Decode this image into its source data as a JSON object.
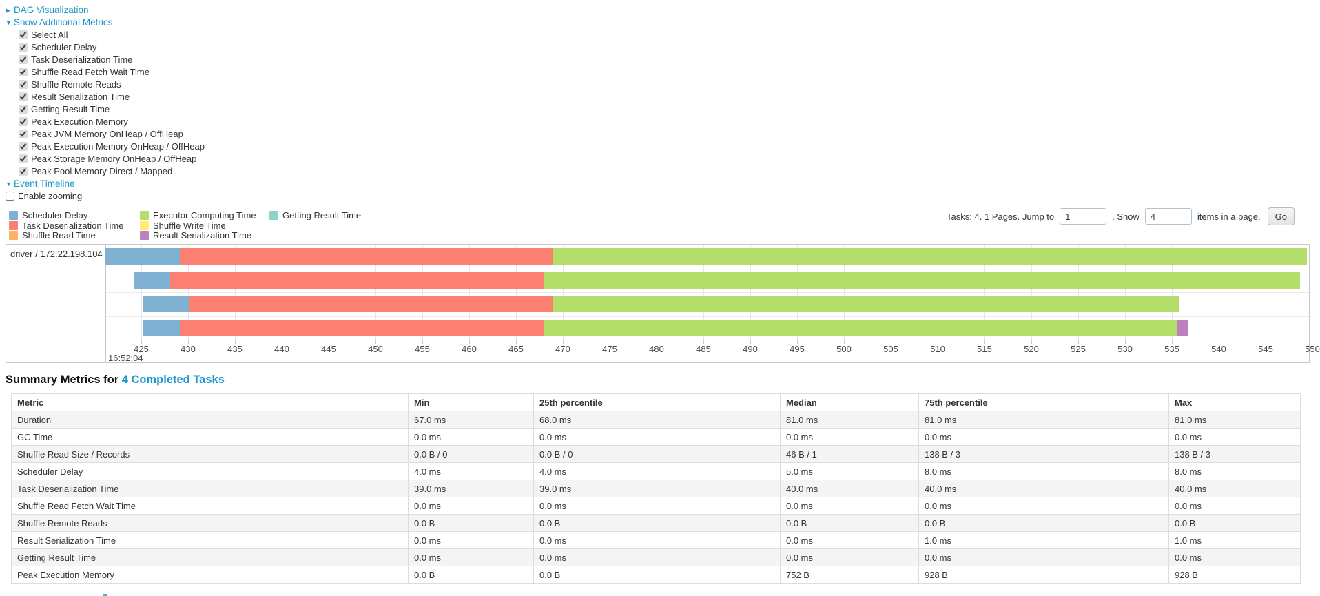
{
  "colors": {
    "link": "#1a96cb",
    "scheduler-delay": "#80B1D3",
    "task-deserialization": "#FB8072",
    "shuffle-read": "#FDB462",
    "executor-computing": "#B3DE69",
    "shuffle-write": "#FFED6F",
    "result-serialization": "#BC80BD",
    "getting-result": "#8DD3C7"
  },
  "sections": {
    "dag": {
      "label": "DAG Visualization",
      "collapsed": true
    },
    "metrics": {
      "label": "Show Additional Metrics",
      "collapsed": false
    },
    "timeline": {
      "label": "Event Timeline",
      "collapsed": false
    }
  },
  "metric_checkboxes": [
    {
      "label": "Select All",
      "checked": true
    },
    {
      "label": "Scheduler Delay",
      "checked": true
    },
    {
      "label": "Task Deserialization Time",
      "checked": true
    },
    {
      "label": "Shuffle Read Fetch Wait Time",
      "checked": true
    },
    {
      "label": "Shuffle Remote Reads",
      "checked": true
    },
    {
      "label": "Result Serialization Time",
      "checked": true
    },
    {
      "label": "Getting Result Time",
      "checked": true
    },
    {
      "label": "Peak Execution Memory",
      "checked": true
    },
    {
      "label": "Peak JVM Memory OnHeap / OffHeap",
      "checked": true
    },
    {
      "label": "Peak Execution Memory OnHeap / OffHeap",
      "checked": true
    },
    {
      "label": "Peak Storage Memory OnHeap / OffHeap",
      "checked": true
    },
    {
      "label": "Peak Pool Memory Direct / Mapped",
      "checked": true
    }
  ],
  "enable_zooming": {
    "label": "Enable zooming",
    "checked": false
  },
  "legend": {
    "columns": [
      [
        {
          "key": "scheduler-delay",
          "label": "Scheduler Delay"
        },
        {
          "key": "task-deserialization",
          "label": "Task Deserialization Time"
        },
        {
          "key": "shuffle-read",
          "label": "Shuffle Read Time"
        }
      ],
      [
        {
          "key": "executor-computing",
          "label": "Executor Computing Time"
        },
        {
          "key": "shuffle-write",
          "label": "Shuffle Write Time"
        },
        {
          "key": "result-serialization",
          "label": "Result Serialization Time"
        }
      ],
      [
        {
          "key": "getting-result",
          "label": "Getting Result Time"
        }
      ]
    ]
  },
  "pagination": {
    "tasks_text": "Tasks: 4. 1 Pages. Jump to",
    "jump_value": "1",
    "show_label": ". Show",
    "show_value": "4",
    "items_text": "items in a page.",
    "go_label": "Go"
  },
  "chart_data": {
    "type": "timeline-gantt",
    "row_label": "driver / 172.22.198.104",
    "x_axis": {
      "unit": "milliseconds after 16:52:04",
      "time_label": "16:52:04",
      "ticks": [
        425,
        430,
        435,
        440,
        445,
        450,
        455,
        460,
        465,
        470,
        475,
        480,
        485,
        490,
        495,
        500,
        505,
        510,
        515,
        520,
        525,
        530,
        535,
        540,
        545,
        550
      ]
    },
    "tasks": [
      {
        "segments": [
          {
            "metric": "scheduler-delay",
            "start": 421.2,
            "end": 429.1
          },
          {
            "metric": "task-deserialization",
            "start": 429.1,
            "end": 468.9
          },
          {
            "metric": "executor-computing",
            "start": 468.9,
            "end": 549.4
          }
        ]
      },
      {
        "segments": [
          {
            "metric": "scheduler-delay",
            "start": 424.2,
            "end": 428.1
          },
          {
            "metric": "task-deserialization",
            "start": 428.1,
            "end": 468.0
          },
          {
            "metric": "executor-computing",
            "start": 468.0,
            "end": 548.7
          }
        ]
      },
      {
        "segments": [
          {
            "metric": "scheduler-delay",
            "start": 425.2,
            "end": 430.1
          },
          {
            "metric": "task-deserialization",
            "start": 430.1,
            "end": 468.9
          },
          {
            "metric": "executor-computing",
            "start": 468.9,
            "end": 535.8
          }
        ]
      },
      {
        "segments": [
          {
            "metric": "scheduler-delay",
            "start": 425.2,
            "end": 429.1
          },
          {
            "metric": "task-deserialization",
            "start": 429.1,
            "end": 468.0
          },
          {
            "metric": "executor-computing",
            "start": 468.0,
            "end": 535.6
          },
          {
            "metric": "result-serialization",
            "start": 535.6,
            "end": 536.7
          }
        ]
      }
    ]
  },
  "summary": {
    "heading_prefix": "Summary Metrics for ",
    "heading_link": "4 Completed Tasks",
    "table": {
      "headers": [
        "Metric",
        "Min",
        "25th percentile",
        "Median",
        "75th percentile",
        "Max"
      ],
      "rows": [
        [
          "Duration",
          "67.0 ms",
          "68.0 ms",
          "81.0 ms",
          "81.0 ms",
          "81.0 ms"
        ],
        [
          "GC Time",
          "0.0 ms",
          "0.0 ms",
          "0.0 ms",
          "0.0 ms",
          "0.0 ms"
        ],
        [
          "Shuffle Read Size / Records",
          "0.0 B / 0",
          "0.0 B / 0",
          "46 B / 1",
          "138 B / 3",
          "138 B / 3"
        ],
        [
          "Scheduler Delay",
          "4.0 ms",
          "4.0 ms",
          "5.0 ms",
          "8.0 ms",
          "8.0 ms"
        ],
        [
          "Task Deserialization Time",
          "39.0 ms",
          "39.0 ms",
          "40.0 ms",
          "40.0 ms",
          "40.0 ms"
        ],
        [
          "Shuffle Read Fetch Wait Time",
          "0.0 ms",
          "0.0 ms",
          "0.0 ms",
          "0.0 ms",
          "0.0 ms"
        ],
        [
          "Shuffle Remote Reads",
          "0.0 B",
          "0.0 B",
          "0.0 B",
          "0.0 B",
          "0.0 B"
        ],
        [
          "Result Serialization Time",
          "0.0 ms",
          "0.0 ms",
          "0.0 ms",
          "1.0 ms",
          "1.0 ms"
        ],
        [
          "Getting Result Time",
          "0.0 ms",
          "0.0 ms",
          "0.0 ms",
          "0.0 ms",
          "0.0 ms"
        ],
        [
          "Peak Execution Memory",
          "0.0 B",
          "0.0 B",
          "752 B",
          "928 B",
          "928 B"
        ]
      ]
    }
  }
}
